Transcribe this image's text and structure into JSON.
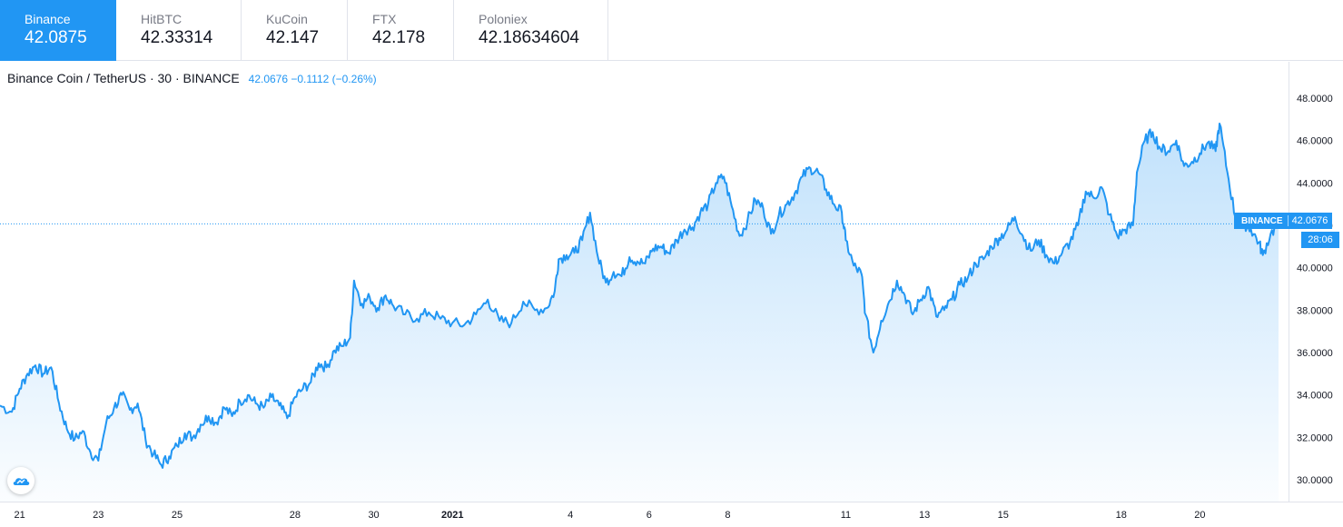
{
  "exchanges": [
    {
      "name": "Binance",
      "price": "42.0875",
      "active": true
    },
    {
      "name": "HitBTC",
      "price": "42.33314",
      "active": false
    },
    {
      "name": "KuCoin",
      "price": "42.147",
      "active": false
    },
    {
      "name": "FTX",
      "price": "42.178",
      "active": false
    },
    {
      "name": "Poloniex",
      "price": "42.18634604",
      "active": false
    }
  ],
  "legend": {
    "symbol": "Binance Coin / TetherUS · 30 · BINANCE",
    "last": "42.0676",
    "change": "−0.1112",
    "change_pct": "(−0.26%)"
  },
  "price_tag": {
    "source": "BINANCE",
    "value": "42.0676",
    "countdown": "28:06"
  },
  "colors": {
    "accent": "#2196f3",
    "line": "#2196f3",
    "text": "#131722",
    "muted": "#787b86",
    "grid": "#e0e3eb"
  },
  "icons": {
    "logo": "tradingview-cloud-icon"
  },
  "chart_data": {
    "type": "area",
    "interval": "30",
    "ylim": [
      29,
      49
    ],
    "y_ticks": [
      "48.0000",
      "46.0000",
      "44.0000",
      "42.0000",
      "40.0000",
      "38.0000",
      "36.0000",
      "34.0000",
      "32.0000",
      "30.0000"
    ],
    "y_tick_values": [
      48,
      46,
      44,
      42,
      40,
      38,
      36,
      34,
      32,
      30
    ],
    "x_ticks": [
      {
        "label": "21",
        "day": 0.5,
        "bold": false
      },
      {
        "label": "23",
        "day": 2.5,
        "bold": false
      },
      {
        "label": "25",
        "day": 4.5,
        "bold": false
      },
      {
        "label": "28",
        "day": 7.5,
        "bold": false
      },
      {
        "label": "30",
        "day": 9.5,
        "bold": false
      },
      {
        "label": "2021",
        "day": 11.5,
        "bold": true
      },
      {
        "label": "4",
        "day": 14.5,
        "bold": false
      },
      {
        "label": "6",
        "day": 16.5,
        "bold": false
      },
      {
        "label": "8",
        "day": 18.5,
        "bold": false
      },
      {
        "label": "11",
        "day": 21.5,
        "bold": false
      },
      {
        "label": "13",
        "day": 23.5,
        "bold": false
      },
      {
        "label": "15",
        "day": 25.5,
        "bold": false
      },
      {
        "label": "18",
        "day": 28.5,
        "bold": false
      },
      {
        "label": "20",
        "day": 30.5,
        "bold": false
      }
    ],
    "last_price": 42.0676,
    "series": [
      {
        "values": [
          {
            "day": 0.0,
            "price": 33.5
          },
          {
            "day": 0.3,
            "price": 33.2
          },
          {
            "day": 0.5,
            "price": 34.3
          },
          {
            "day": 0.7,
            "price": 35.0
          },
          {
            "day": 0.9,
            "price": 35.4
          },
          {
            "day": 1.1,
            "price": 35.0
          },
          {
            "day": 1.3,
            "price": 35.3
          },
          {
            "day": 1.5,
            "price": 33.6
          },
          {
            "day": 1.7,
            "price": 32.4
          },
          {
            "day": 1.9,
            "price": 31.9
          },
          {
            "day": 2.1,
            "price": 32.3
          },
          {
            "day": 2.3,
            "price": 31.3
          },
          {
            "day": 2.5,
            "price": 30.9
          },
          {
            "day": 2.7,
            "price": 32.7
          },
          {
            "day": 2.9,
            "price": 33.4
          },
          {
            "day": 3.1,
            "price": 34.0
          },
          {
            "day": 3.3,
            "price": 33.3
          },
          {
            "day": 3.5,
            "price": 33.6
          },
          {
            "day": 3.7,
            "price": 31.9
          },
          {
            "day": 3.9,
            "price": 31.2
          },
          {
            "day": 4.1,
            "price": 30.7
          },
          {
            "day": 4.3,
            "price": 31.1
          },
          {
            "day": 4.5,
            "price": 31.6
          },
          {
            "day": 4.7,
            "price": 32.2
          },
          {
            "day": 4.9,
            "price": 32.0
          },
          {
            "day": 5.1,
            "price": 32.6
          },
          {
            "day": 5.3,
            "price": 33.0
          },
          {
            "day": 5.5,
            "price": 32.7
          },
          {
            "day": 5.7,
            "price": 33.4
          },
          {
            "day": 5.9,
            "price": 33.0
          },
          {
            "day": 6.1,
            "price": 33.7
          },
          {
            "day": 6.3,
            "price": 34.0
          },
          {
            "day": 6.5,
            "price": 33.6
          },
          {
            "day": 6.7,
            "price": 33.4
          },
          {
            "day": 6.9,
            "price": 33.9
          },
          {
            "day": 7.1,
            "price": 33.5
          },
          {
            "day": 7.3,
            "price": 32.9
          },
          {
            "day": 7.5,
            "price": 33.9
          },
          {
            "day": 7.7,
            "price": 34.3
          },
          {
            "day": 7.9,
            "price": 34.6
          },
          {
            "day": 8.1,
            "price": 35.5
          },
          {
            "day": 8.3,
            "price": 35.3
          },
          {
            "day": 8.5,
            "price": 36.1
          },
          {
            "day": 8.7,
            "price": 36.3
          },
          {
            "day": 8.9,
            "price": 36.7
          },
          {
            "day": 9.0,
            "price": 39.4
          },
          {
            "day": 9.2,
            "price": 38.3
          },
          {
            "day": 9.4,
            "price": 38.6
          },
          {
            "day": 9.6,
            "price": 38.1
          },
          {
            "day": 9.8,
            "price": 38.7
          },
          {
            "day": 10.0,
            "price": 38.2
          },
          {
            "day": 10.3,
            "price": 37.8
          },
          {
            "day": 10.6,
            "price": 37.6
          },
          {
            "day": 10.9,
            "price": 37.9
          },
          {
            "day": 11.2,
            "price": 37.6
          },
          {
            "day": 11.5,
            "price": 37.4
          },
          {
            "day": 11.8,
            "price": 37.3
          },
          {
            "day": 12.1,
            "price": 37.8
          },
          {
            "day": 12.4,
            "price": 38.5
          },
          {
            "day": 12.7,
            "price": 37.5
          },
          {
            "day": 13.0,
            "price": 37.4
          },
          {
            "day": 13.3,
            "price": 38.4
          },
          {
            "day": 13.6,
            "price": 38.0
          },
          {
            "day": 13.9,
            "price": 38.1
          },
          {
            "day": 14.1,
            "price": 38.9
          },
          {
            "day": 14.2,
            "price": 40.4
          },
          {
            "day": 14.4,
            "price": 40.6
          },
          {
            "day": 14.6,
            "price": 40.7
          },
          {
            "day": 14.8,
            "price": 41.3
          },
          {
            "day": 15.0,
            "price": 42.6
          },
          {
            "day": 15.2,
            "price": 40.5
          },
          {
            "day": 15.4,
            "price": 39.3
          },
          {
            "day": 15.6,
            "price": 39.8
          },
          {
            "day": 15.8,
            "price": 39.6
          },
          {
            "day": 16.0,
            "price": 40.5
          },
          {
            "day": 16.2,
            "price": 40.3
          },
          {
            "day": 16.4,
            "price": 40.2
          },
          {
            "day": 16.6,
            "price": 40.9
          },
          {
            "day": 16.8,
            "price": 41.0
          },
          {
            "day": 17.0,
            "price": 40.7
          },
          {
            "day": 17.2,
            "price": 41.3
          },
          {
            "day": 17.4,
            "price": 41.8
          },
          {
            "day": 17.6,
            "price": 41.9
          },
          {
            "day": 17.8,
            "price": 42.6
          },
          {
            "day": 18.0,
            "price": 43.0
          },
          {
            "day": 18.2,
            "price": 44.0
          },
          {
            "day": 18.4,
            "price": 44.3
          },
          {
            "day": 18.6,
            "price": 42.9
          },
          {
            "day": 18.8,
            "price": 41.5
          },
          {
            "day": 19.0,
            "price": 42.2
          },
          {
            "day": 19.2,
            "price": 43.2
          },
          {
            "day": 19.4,
            "price": 42.8
          },
          {
            "day": 19.6,
            "price": 41.6
          },
          {
            "day": 19.8,
            "price": 42.5
          },
          {
            "day": 20.0,
            "price": 43.0
          },
          {
            "day": 20.2,
            "price": 43.5
          },
          {
            "day": 20.4,
            "price": 44.3
          },
          {
            "day": 20.6,
            "price": 44.7
          },
          {
            "day": 20.8,
            "price": 44.5
          },
          {
            "day": 21.0,
            "price": 43.7
          },
          {
            "day": 21.2,
            "price": 43.0
          },
          {
            "day": 21.4,
            "price": 42.6
          },
          {
            "day": 21.5,
            "price": 41.3
          },
          {
            "day": 21.7,
            "price": 40.1
          },
          {
            "day": 21.9,
            "price": 39.7
          },
          {
            "day": 22.0,
            "price": 37.8
          },
          {
            "day": 22.2,
            "price": 36.0
          },
          {
            "day": 22.4,
            "price": 37.5
          },
          {
            "day": 22.6,
            "price": 38.4
          },
          {
            "day": 22.8,
            "price": 39.4
          },
          {
            "day": 23.0,
            "price": 38.7
          },
          {
            "day": 23.2,
            "price": 37.8
          },
          {
            "day": 23.4,
            "price": 38.5
          },
          {
            "day": 23.6,
            "price": 39.1
          },
          {
            "day": 23.8,
            "price": 37.7
          },
          {
            "day": 24.0,
            "price": 38.0
          },
          {
            "day": 24.2,
            "price": 38.5
          },
          {
            "day": 24.4,
            "price": 39.2
          },
          {
            "day": 24.6,
            "price": 39.5
          },
          {
            "day": 24.8,
            "price": 40.2
          },
          {
            "day": 25.0,
            "price": 40.4
          },
          {
            "day": 25.2,
            "price": 41.0
          },
          {
            "day": 25.4,
            "price": 41.4
          },
          {
            "day": 25.6,
            "price": 41.8
          },
          {
            "day": 25.8,
            "price": 42.4
          },
          {
            "day": 26.0,
            "price": 41.5
          },
          {
            "day": 26.2,
            "price": 40.8
          },
          {
            "day": 26.4,
            "price": 41.3
          },
          {
            "day": 26.6,
            "price": 40.6
          },
          {
            "day": 26.8,
            "price": 40.2
          },
          {
            "day": 27.0,
            "price": 40.7
          },
          {
            "day": 27.2,
            "price": 41.2
          },
          {
            "day": 27.4,
            "price": 42.0
          },
          {
            "day": 27.6,
            "price": 43.6
          },
          {
            "day": 27.8,
            "price": 43.3
          },
          {
            "day": 28.0,
            "price": 43.8
          },
          {
            "day": 28.2,
            "price": 42.5
          },
          {
            "day": 28.4,
            "price": 41.5
          },
          {
            "day": 28.6,
            "price": 41.8
          },
          {
            "day": 28.8,
            "price": 42.0
          },
          {
            "day": 28.9,
            "price": 44.5
          },
          {
            "day": 29.1,
            "price": 46.0
          },
          {
            "day": 29.3,
            "price": 46.4
          },
          {
            "day": 29.5,
            "price": 45.6
          },
          {
            "day": 29.7,
            "price": 45.5
          },
          {
            "day": 29.9,
            "price": 46.0
          },
          {
            "day": 30.1,
            "price": 44.8
          },
          {
            "day": 30.3,
            "price": 45.0
          },
          {
            "day": 30.5,
            "price": 45.4
          },
          {
            "day": 30.7,
            "price": 45.9
          },
          {
            "day": 30.9,
            "price": 45.5
          },
          {
            "day": 31.0,
            "price": 46.8
          },
          {
            "day": 31.2,
            "price": 44.5
          },
          {
            "day": 31.4,
            "price": 42.4
          },
          {
            "day": 31.6,
            "price": 42.1
          },
          {
            "day": 31.8,
            "price": 41.8
          },
          {
            "day": 32.0,
            "price": 41.2
          },
          {
            "day": 32.1,
            "price": 40.6
          },
          {
            "day": 32.3,
            "price": 41.6
          },
          {
            "day": 32.5,
            "price": 42.07
          }
        ]
      }
    ]
  }
}
